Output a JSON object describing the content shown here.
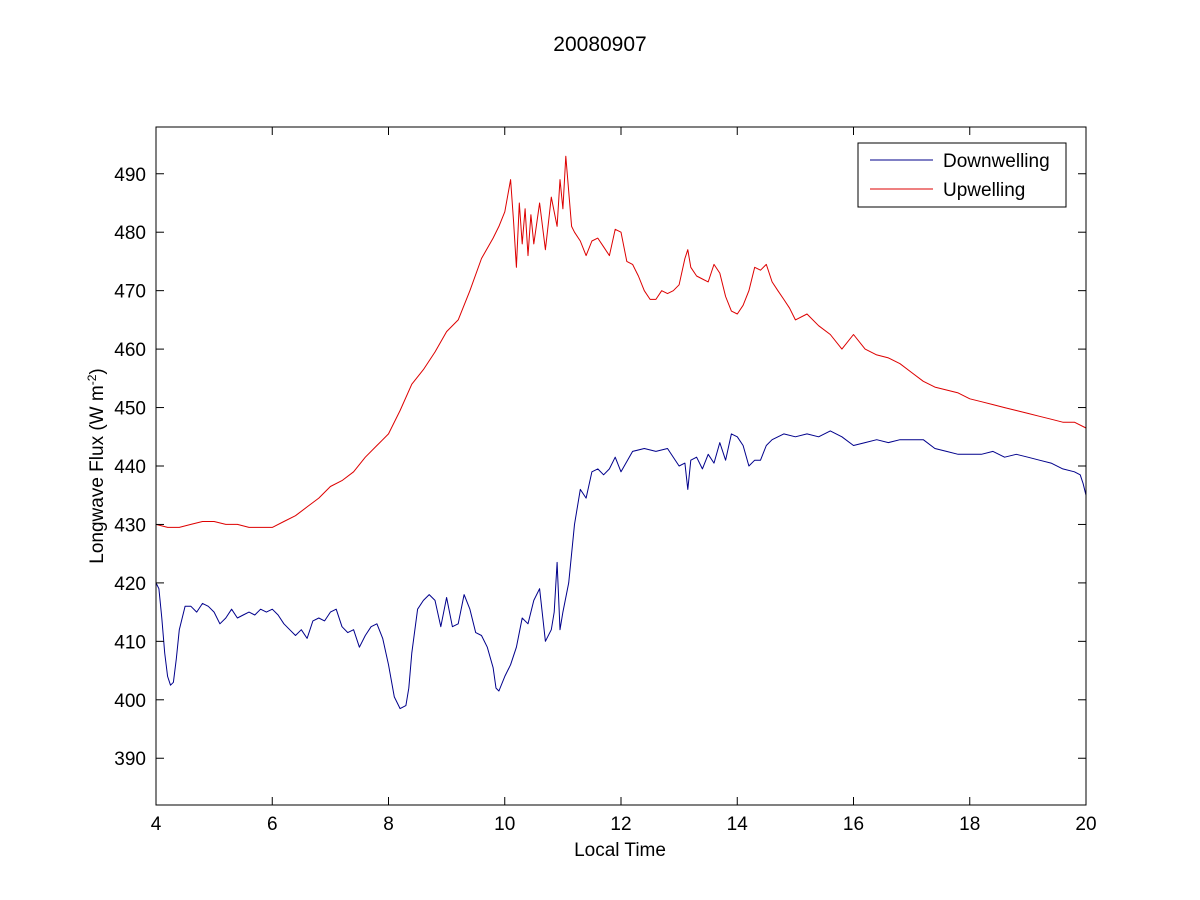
{
  "chart_data": {
    "type": "line",
    "title": "20080907",
    "xlabel": "Local Time",
    "ylabel": "Longwave Flux (W m",
    "ylabel_exponent": "-2",
    "ylabel_suffix": ")",
    "xlim": [
      4,
      20
    ],
    "ylim": [
      382,
      498
    ],
    "xticks": [
      4,
      6,
      8,
      10,
      12,
      14,
      16,
      18,
      20
    ],
    "yticks": [
      390,
      400,
      410,
      420,
      430,
      440,
      450,
      460,
      470,
      480,
      490
    ],
    "grid": false,
    "legend_position": "top-right",
    "series": [
      {
        "name": "Downwelling",
        "color": "#00008b",
        "x": [
          4.0,
          4.05,
          4.1,
          4.15,
          4.2,
          4.25,
          4.3,
          4.35,
          4.4,
          4.5,
          4.6,
          4.7,
          4.8,
          4.9,
          5.0,
          5.1,
          5.2,
          5.3,
          5.4,
          5.5,
          5.6,
          5.7,
          5.8,
          5.9,
          6.0,
          6.1,
          6.2,
          6.3,
          6.4,
          6.5,
          6.6,
          6.7,
          6.8,
          6.9,
          7.0,
          7.1,
          7.2,
          7.3,
          7.4,
          7.5,
          7.6,
          7.7,
          7.8,
          7.9,
          8.0,
          8.1,
          8.2,
          8.3,
          8.35,
          8.4,
          8.5,
          8.6,
          8.7,
          8.8,
          8.9,
          9.0,
          9.1,
          9.2,
          9.3,
          9.4,
          9.5,
          9.6,
          9.7,
          9.8,
          9.85,
          9.9,
          10.0,
          10.1,
          10.2,
          10.3,
          10.4,
          10.5,
          10.6,
          10.7,
          10.8,
          10.85,
          10.9,
          10.95,
          11.0,
          11.1,
          11.2,
          11.3,
          11.4,
          11.5,
          11.6,
          11.7,
          11.8,
          11.9,
          12.0,
          12.2,
          12.4,
          12.6,
          12.8,
          13.0,
          13.1,
          13.15,
          13.2,
          13.3,
          13.4,
          13.5,
          13.6,
          13.7,
          13.8,
          13.9,
          14.0,
          14.1,
          14.2,
          14.3,
          14.4,
          14.5,
          14.6,
          14.8,
          15.0,
          15.2,
          15.4,
          15.6,
          15.8,
          16.0,
          16.2,
          16.4,
          16.6,
          16.8,
          17.0,
          17.2,
          17.4,
          17.6,
          17.8,
          18.0,
          18.2,
          18.4,
          18.6,
          18.8,
          19.0,
          19.2,
          19.4,
          19.6,
          19.8,
          19.9,
          19.95,
          20.0
        ],
        "y": [
          420,
          419,
          414,
          408,
          404,
          402.5,
          403,
          407,
          412,
          416,
          416,
          415,
          416.5,
          416,
          415,
          413,
          414,
          415.5,
          414,
          414.5,
          415,
          414.5,
          415.5,
          415,
          415.5,
          414.5,
          413,
          412,
          411,
          412,
          410.5,
          413.5,
          414,
          413.5,
          415,
          415.5,
          412.5,
          411.5,
          412,
          409,
          411,
          412.5,
          413,
          410.5,
          406,
          400.5,
          398.5,
          399,
          402,
          408,
          415.5,
          417,
          418,
          417,
          412.5,
          417.5,
          412.5,
          413,
          418,
          415.5,
          411.5,
          411,
          409,
          405.5,
          402,
          401.5,
          404,
          406,
          409,
          414,
          413,
          417,
          419,
          410,
          412,
          415,
          423.5,
          412,
          415,
          420,
          430,
          436,
          434.5,
          439,
          439.5,
          438.5,
          439.5,
          441.5,
          439,
          442.5,
          443,
          442.5,
          443,
          440,
          440.5,
          436,
          441,
          441.5,
          439.5,
          442,
          440.5,
          444,
          441,
          445.5,
          445,
          443.5,
          440,
          441,
          441,
          443.5,
          444.5,
          445.5,
          445,
          445.5,
          445,
          446,
          445,
          443.5,
          444,
          444.5,
          444,
          444.5,
          444.5,
          444.5,
          443,
          442.5,
          442,
          442,
          442,
          442.5,
          441.5,
          442,
          441.5,
          441,
          440.5,
          439.5,
          439,
          438.5,
          437,
          435
        ]
      },
      {
        "name": "Upwelling",
        "color": "#dd0000",
        "x": [
          4.0,
          4.2,
          4.4,
          4.6,
          4.8,
          5.0,
          5.2,
          5.4,
          5.6,
          5.8,
          6.0,
          6.2,
          6.4,
          6.6,
          6.8,
          7.0,
          7.2,
          7.4,
          7.6,
          7.8,
          8.0,
          8.2,
          8.4,
          8.6,
          8.8,
          9.0,
          9.2,
          9.4,
          9.6,
          9.8,
          9.9,
          10.0,
          10.1,
          10.15,
          10.2,
          10.25,
          10.3,
          10.35,
          10.4,
          10.45,
          10.5,
          10.6,
          10.7,
          10.8,
          10.9,
          10.95,
          11.0,
          11.05,
          11.1,
          11.15,
          11.2,
          11.3,
          11.4,
          11.5,
          11.6,
          11.7,
          11.8,
          11.9,
          12.0,
          12.1,
          12.2,
          12.3,
          12.4,
          12.5,
          12.6,
          12.7,
          12.8,
          12.9,
          13.0,
          13.1,
          13.15,
          13.2,
          13.3,
          13.4,
          13.5,
          13.6,
          13.7,
          13.8,
          13.9,
          14.0,
          14.1,
          14.2,
          14.3,
          14.4,
          14.5,
          14.6,
          14.7,
          14.8,
          14.9,
          15.0,
          15.2,
          15.4,
          15.6,
          15.8,
          16.0,
          16.2,
          16.4,
          16.6,
          16.8,
          17.0,
          17.2,
          17.4,
          17.6,
          17.8,
          18.0,
          18.2,
          18.4,
          18.6,
          18.8,
          19.0,
          19.2,
          19.4,
          19.6,
          19.8,
          20.0
        ],
        "y": [
          430,
          429.5,
          429.5,
          430,
          430.5,
          430.5,
          430,
          430,
          429.5,
          429.5,
          429.5,
          430.5,
          431.5,
          433,
          434.5,
          436.5,
          437.5,
          439,
          441.5,
          443.5,
          445.5,
          449.5,
          454,
          456.5,
          459.5,
          463,
          465,
          470,
          475.5,
          479,
          481,
          483.5,
          489,
          482,
          474,
          485,
          478,
          484,
          476,
          483,
          478,
          485,
          477,
          486,
          481,
          489,
          484,
          493,
          487,
          481,
          480,
          478.5,
          476,
          478.5,
          479,
          477.5,
          476,
          480.5,
          480,
          475,
          474.5,
          472.5,
          470,
          468.5,
          468.5,
          470,
          469.5,
          470,
          471,
          475.5,
          477,
          474,
          472.5,
          472,
          471.5,
          474.5,
          473,
          469,
          466.5,
          466,
          467.5,
          470,
          474,
          473.5,
          474.5,
          471.5,
          470,
          468.5,
          467,
          465,
          466,
          464,
          462.5,
          460,
          462.5,
          460,
          459,
          458.5,
          457.5,
          456,
          454.5,
          453.5,
          453,
          452.5,
          451.5,
          451,
          450.5,
          450,
          449.5,
          449,
          448.5,
          448,
          447.5,
          447.5,
          446.5
        ]
      }
    ]
  }
}
